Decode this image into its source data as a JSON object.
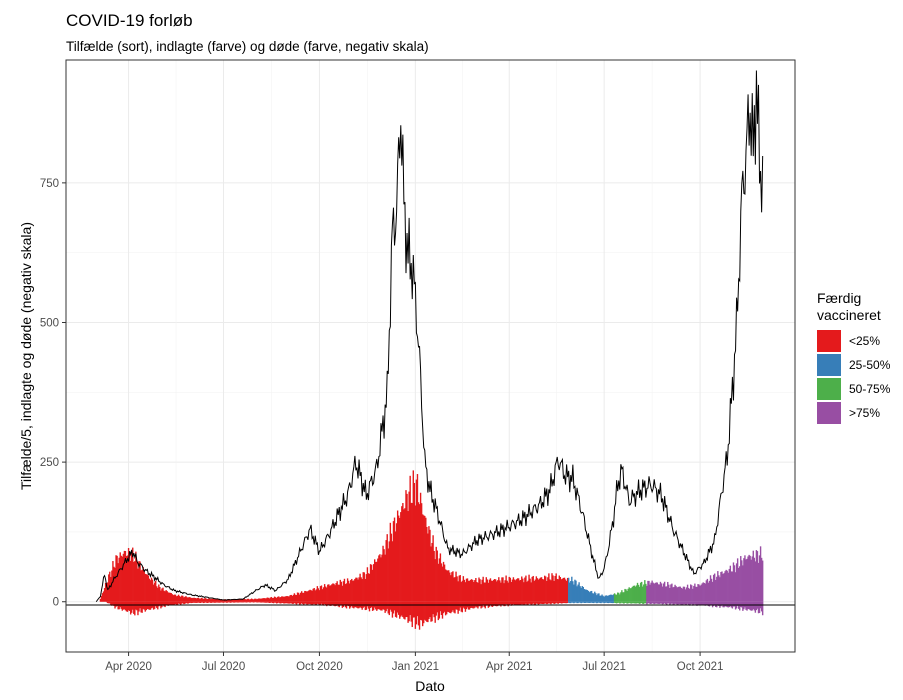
{
  "chart_data": {
    "type": "bar",
    "title": "COVID-19 forløb",
    "subtitle": "Tilfælde (sort), indlagte (farve) og døde (farve, negativ skala)",
    "xlabel": "Dato",
    "ylabel": "Tilfælde/5, indlagte og døde (negativ skala)",
    "xlim": [
      "2020-02-01",
      "2021-12-31"
    ],
    "ylim": [
      -90,
      970
    ],
    "x_ticks": [
      "2020-04-01",
      "2020-07-01",
      "2020-10-01",
      "2021-01-01",
      "2021-04-01",
      "2021-07-01",
      "2021-10-01"
    ],
    "x_tick_labels": [
      "Apr 2020",
      "Jul 2020",
      "Oct 2020",
      "Jan 2021",
      "Apr 2021",
      "Jul 2021",
      "Oct 2021"
    ],
    "y_ticks": [
      0,
      250,
      500,
      750
    ],
    "y_tick_labels": [
      "0",
      "250",
      "500",
      "750"
    ],
    "grid": true,
    "legend": {
      "position": "right",
      "title": "Færdig vaccineret",
      "entries": [
        {
          "label": "<25%",
          "color": "#E41A1C"
        },
        {
          "label": "25-50%",
          "color": "#377EB8"
        },
        {
          "label": "50-75%",
          "color": "#4DAF4A"
        },
        {
          "label": ">75%",
          "color": "#984EA3"
        }
      ]
    },
    "series": [
      {
        "role": "cases_line",
        "color": "#000000",
        "points": [
          [
            "2020-03-01",
            0
          ],
          [
            "2020-03-05",
            10
          ],
          [
            "2020-03-09",
            50
          ],
          [
            "2020-03-12",
            20
          ],
          [
            "2020-03-18",
            40
          ],
          [
            "2020-03-25",
            60
          ],
          [
            "2020-04-01",
            80
          ],
          [
            "2020-04-05",
            90
          ],
          [
            "2020-04-10",
            70
          ],
          [
            "2020-04-18",
            55
          ],
          [
            "2020-04-25",
            45
          ],
          [
            "2020-05-05",
            30
          ],
          [
            "2020-05-15",
            20
          ],
          [
            "2020-06-01",
            12
          ],
          [
            "2020-06-15",
            8
          ],
          [
            "2020-07-01",
            3
          ],
          [
            "2020-07-20",
            5
          ],
          [
            "2020-08-01",
            20
          ],
          [
            "2020-08-10",
            30
          ],
          [
            "2020-08-20",
            20
          ],
          [
            "2020-09-01",
            40
          ],
          [
            "2020-09-15",
            100
          ],
          [
            "2020-09-22",
            130
          ],
          [
            "2020-10-01",
            90
          ],
          [
            "2020-10-10",
            120
          ],
          [
            "2020-10-20",
            160
          ],
          [
            "2020-10-28",
            190
          ],
          [
            "2020-11-05",
            250
          ],
          [
            "2020-11-15",
            190
          ],
          [
            "2020-11-25",
            240
          ],
          [
            "2020-12-05",
            370
          ],
          [
            "2020-12-10",
            660
          ],
          [
            "2020-12-14",
            700
          ],
          [
            "2020-12-18",
            880
          ],
          [
            "2020-12-21",
            710
          ],
          [
            "2020-12-25",
            620
          ],
          [
            "2020-12-29",
            600
          ],
          [
            "2021-01-02",
            520
          ],
          [
            "2021-01-06",
            400
          ],
          [
            "2021-01-10",
            250
          ],
          [
            "2021-01-15",
            200
          ],
          [
            "2021-01-22",
            160
          ],
          [
            "2021-02-01",
            95
          ],
          [
            "2021-02-15",
            85
          ],
          [
            "2021-03-01",
            110
          ],
          [
            "2021-03-15",
            120
          ],
          [
            "2021-04-01",
            135
          ],
          [
            "2021-04-15",
            150
          ],
          [
            "2021-05-01",
            175
          ],
          [
            "2021-05-10",
            200
          ],
          [
            "2021-05-18",
            255
          ],
          [
            "2021-05-25",
            225
          ],
          [
            "2021-06-01",
            220
          ],
          [
            "2021-06-10",
            160
          ],
          [
            "2021-06-20",
            80
          ],
          [
            "2021-06-26",
            40
          ],
          [
            "2021-07-01",
            60
          ],
          [
            "2021-07-05",
            95
          ],
          [
            "2021-07-10",
            150
          ],
          [
            "2021-07-14",
            210
          ],
          [
            "2021-07-18",
            235
          ],
          [
            "2021-07-25",
            180
          ],
          [
            "2021-08-05",
            200
          ],
          [
            "2021-08-15",
            210
          ],
          [
            "2021-08-25",
            190
          ],
          [
            "2021-09-05",
            130
          ],
          [
            "2021-09-15",
            90
          ],
          [
            "2021-09-25",
            50
          ],
          [
            "2021-10-05",
            70
          ],
          [
            "2021-10-15",
            110
          ],
          [
            "2021-10-22",
            200
          ],
          [
            "2021-10-27",
            260
          ],
          [
            "2021-11-01",
            380
          ],
          [
            "2021-11-05",
            490
          ],
          [
            "2021-11-10",
            720
          ],
          [
            "2021-11-14",
            800
          ],
          [
            "2021-11-18",
            890
          ],
          [
            "2021-11-21",
            800
          ],
          [
            "2021-11-24",
            930
          ],
          [
            "2021-11-27",
            780
          ],
          [
            "2021-11-30",
            760
          ]
        ]
      },
      {
        "role": "hospitalised_bars",
        "points": [
          [
            "2020-03-05",
            5
          ],
          [
            "2020-03-12",
            40
          ],
          [
            "2020-03-20",
            75
          ],
          [
            "2020-03-28",
            88
          ],
          [
            "2020-04-05",
            85
          ],
          [
            "2020-04-12",
            65
          ],
          [
            "2020-04-20",
            45
          ],
          [
            "2020-05-01",
            25
          ],
          [
            "2020-05-15",
            12
          ],
          [
            "2020-06-01",
            7
          ],
          [
            "2020-07-01",
            4
          ],
          [
            "2020-08-01",
            5
          ],
          [
            "2020-09-01",
            10
          ],
          [
            "2020-10-01",
            25
          ],
          [
            "2020-10-15",
            32
          ],
          [
            "2020-11-01",
            38
          ],
          [
            "2020-11-15",
            50
          ],
          [
            "2020-12-01",
            90
          ],
          [
            "2020-12-15",
            150
          ],
          [
            "2020-12-25",
            190
          ],
          [
            "2021-01-02",
            210
          ],
          [
            "2021-01-10",
            150
          ],
          [
            "2021-01-20",
            90
          ],
          [
            "2021-02-01",
            55
          ],
          [
            "2021-02-15",
            40
          ],
          [
            "2021-03-01",
            38
          ],
          [
            "2021-04-01",
            40
          ],
          [
            "2021-05-01",
            42
          ],
          [
            "2021-05-15",
            45
          ],
          [
            "2021-06-01",
            38
          ],
          [
            "2021-06-15",
            20
          ],
          [
            "2021-07-01",
            10
          ],
          [
            "2021-07-15",
            15
          ],
          [
            "2021-08-01",
            30
          ],
          [
            "2021-08-15",
            35
          ],
          [
            "2021-09-01",
            30
          ],
          [
            "2021-09-15",
            25
          ],
          [
            "2021-10-01",
            30
          ],
          [
            "2021-10-15",
            45
          ],
          [
            "2021-11-01",
            60
          ],
          [
            "2021-11-15",
            80
          ],
          [
            "2021-11-30",
            85
          ]
        ]
      },
      {
        "role": "deaths_bars_negative",
        "points": [
          [
            "2020-03-10",
            0
          ],
          [
            "2020-03-20",
            10
          ],
          [
            "2020-04-05",
            20
          ],
          [
            "2020-04-20",
            14
          ],
          [
            "2020-05-10",
            6
          ],
          [
            "2020-06-01",
            2
          ],
          [
            "2020-08-01",
            1
          ],
          [
            "2020-10-01",
            5
          ],
          [
            "2020-11-01",
            10
          ],
          [
            "2020-12-01",
            15
          ],
          [
            "2020-12-20",
            28
          ],
          [
            "2021-01-05",
            40
          ],
          [
            "2021-01-15",
            32
          ],
          [
            "2021-02-01",
            20
          ],
          [
            "2021-03-01",
            10
          ],
          [
            "2021-04-01",
            6
          ],
          [
            "2021-05-01",
            4
          ],
          [
            "2021-06-01",
            2
          ],
          [
            "2021-07-01",
            2
          ],
          [
            "2021-08-01",
            3
          ],
          [
            "2021-09-01",
            4
          ],
          [
            "2021-10-01",
            6
          ],
          [
            "2021-11-01",
            10
          ],
          [
            "2021-11-30",
            18
          ]
        ]
      }
    ],
    "vaccination_bands": [
      {
        "label": "<25%",
        "from": "2020-02-01",
        "to": "2021-05-27",
        "color": "#E41A1C"
      },
      {
        "label": "25-50%",
        "from": "2021-05-28",
        "to": "2021-07-10",
        "color": "#377EB8"
      },
      {
        "label": "50-75%",
        "from": "2021-07-11",
        "to": "2021-08-10",
        "color": "#4DAF4A"
      },
      {
        "label": ">75%",
        "from": "2021-08-11",
        "to": "2021-12-31",
        "color": "#984EA3"
      }
    ]
  }
}
